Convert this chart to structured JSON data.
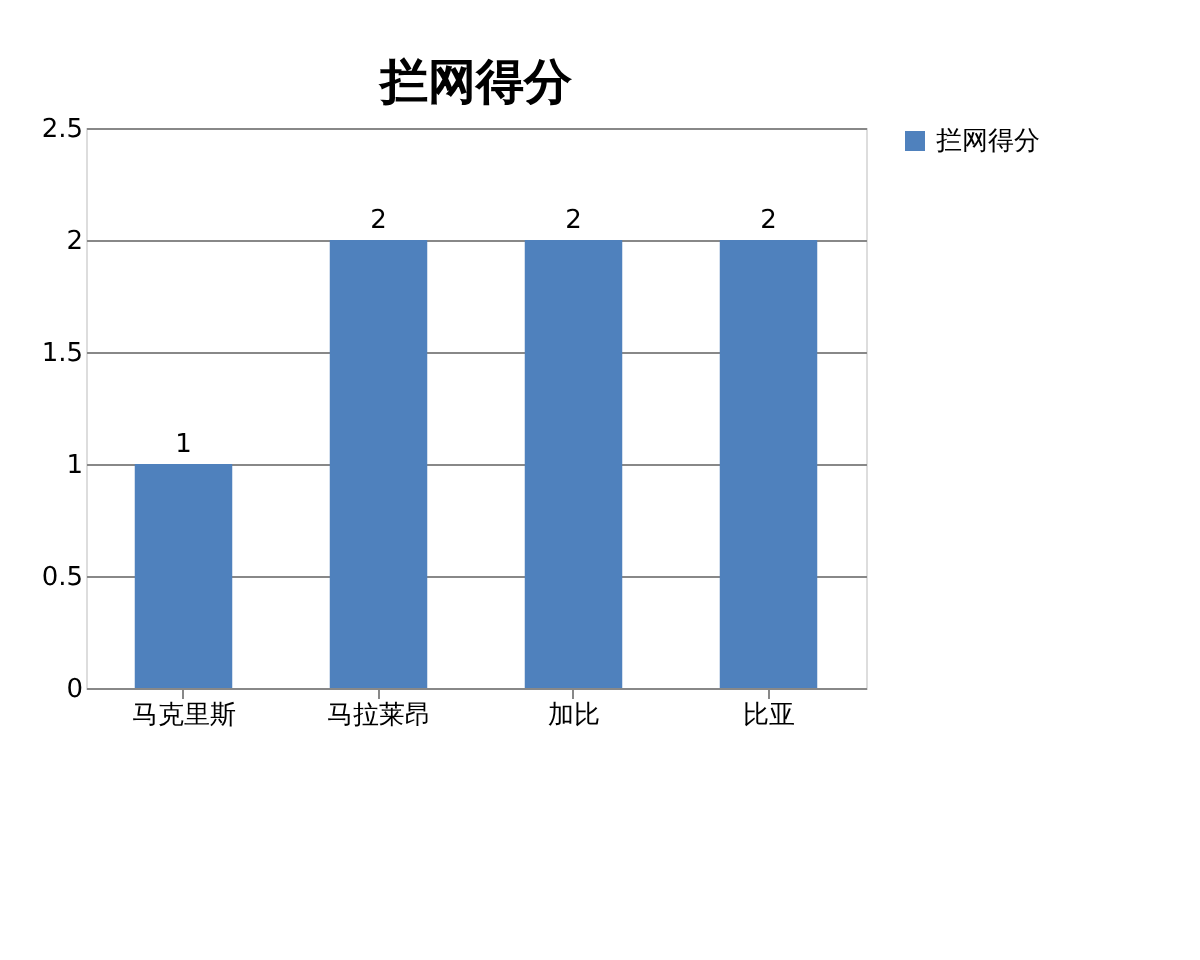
{
  "chart_data": {
    "type": "bar",
    "title": "拦网得分",
    "categories": [
      "马克里斯",
      "马拉莱昂",
      "加比",
      "比亚"
    ],
    "series": [
      {
        "name": "拦网得分",
        "color": "#4f81bd",
        "values": [
          1,
          2,
          2,
          2
        ]
      }
    ],
    "ylim": [
      0,
      2.5
    ],
    "yticks": [
      0,
      0.5,
      1,
      1.5,
      2,
      2.5
    ],
    "grid": "y",
    "legend": "right",
    "data_labels": true
  }
}
